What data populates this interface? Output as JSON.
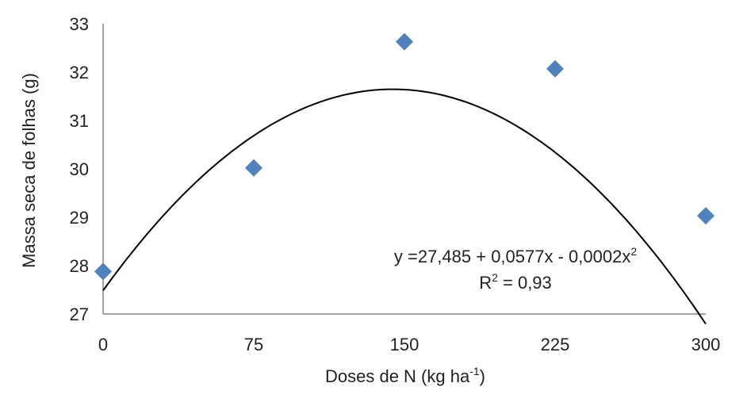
{
  "chart_data": {
    "type": "scatter",
    "xlabel_main": "Doses de N (kg ha",
    "xlabel_sup": "-1",
    "xlabel_end": ")",
    "ylabel": "Massa seca de folhas (g)",
    "xlim": [
      0,
      300
    ],
    "ylim": [
      27,
      33
    ],
    "x_ticks": [
      "0",
      "75",
      "150",
      "225",
      "300"
    ],
    "y_ticks": [
      "27",
      "28",
      "29",
      "30",
      "31",
      "32",
      "33"
    ],
    "grid": false,
    "points": [
      {
        "x": 0,
        "y": 27.88
      },
      {
        "x": 75,
        "y": 30.02
      },
      {
        "x": 150,
        "y": 32.63
      },
      {
        "x": 225,
        "y": 32.07
      },
      {
        "x": 300,
        "y": 29.03
      }
    ],
    "marker_color": "#4F81BD",
    "trendline": {
      "type": "polynomial",
      "color": "#000000",
      "coefficients": [
        27.485,
        0.0577,
        -0.0002
      ]
    },
    "equation_main": "y =27,485  + 0,0577x  - 0,0002x",
    "equation_sup": "2",
    "r2_label": "R",
    "r2_sup": "2",
    "r2_value": " = 0,93"
  }
}
